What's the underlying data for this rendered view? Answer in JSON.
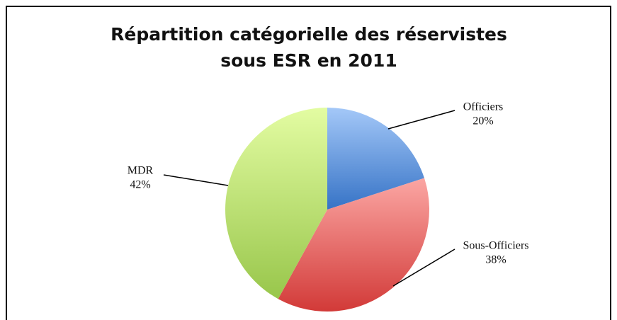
{
  "chart_data": {
    "type": "pie",
    "title": [
      "Répartition catégorielle des réservistes",
      "sous ESR en 2011"
    ],
    "categories": [
      "Officiers",
      "Sous-Officiers",
      "MDR"
    ],
    "values": [
      20,
      38,
      42
    ],
    "value_labels": [
      "20%",
      "38%",
      "42%"
    ],
    "colors": [
      [
        "#a4c8f8",
        "#3673c6"
      ],
      [
        "#fba6a3",
        "#d23a38"
      ],
      [
        "#e3fca2",
        "#98c64b"
      ]
    ]
  }
}
